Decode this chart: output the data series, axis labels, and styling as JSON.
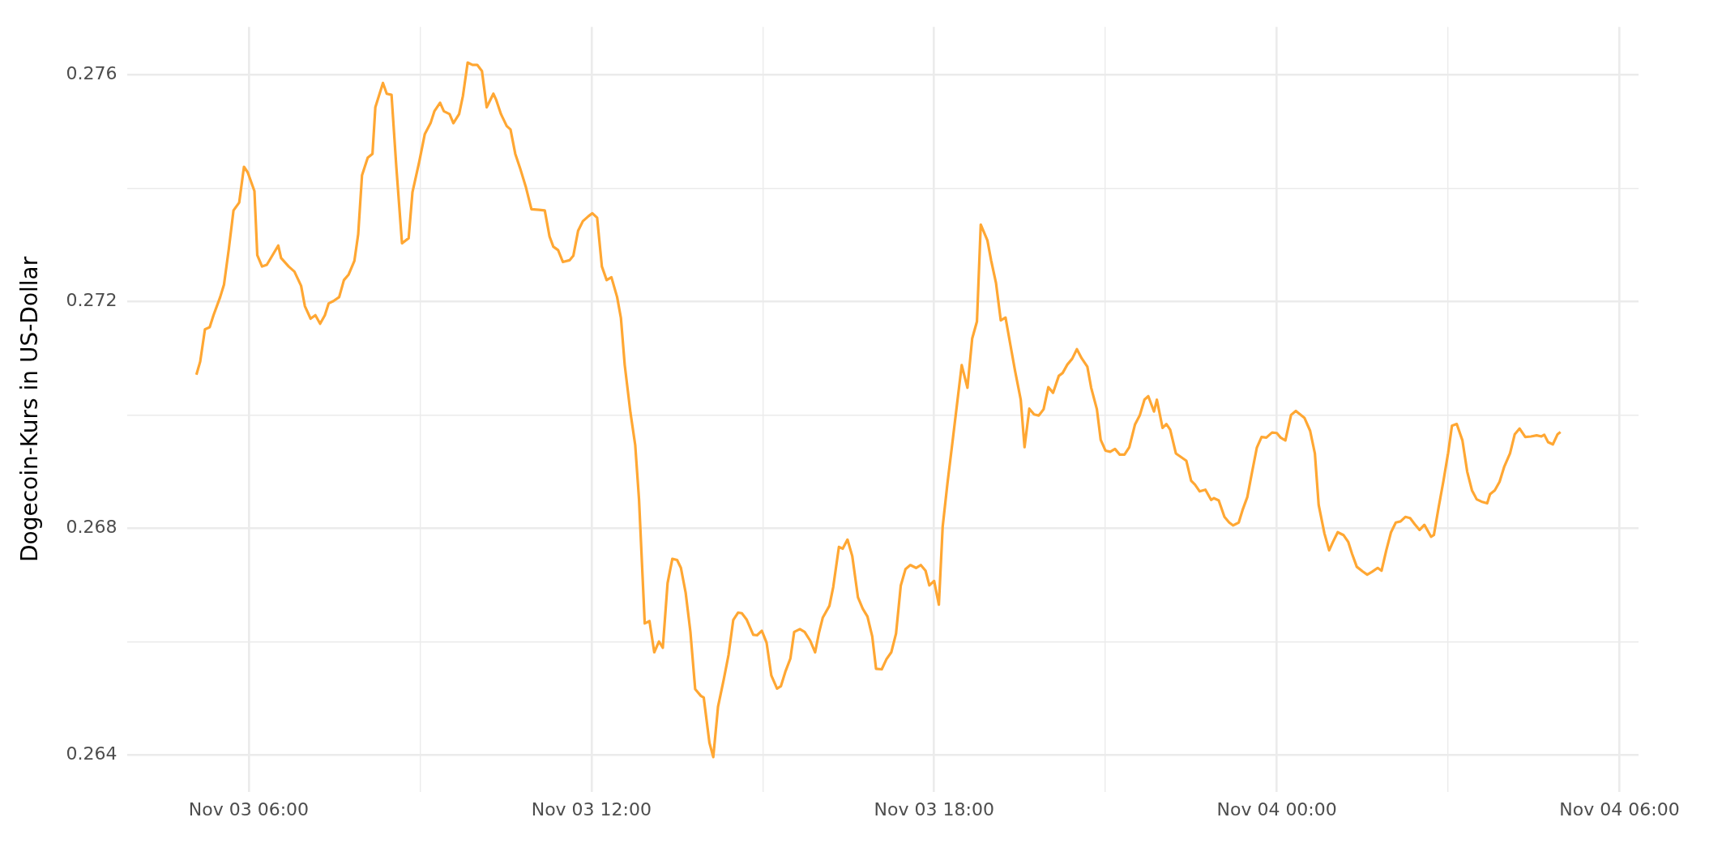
{
  "chart_data": {
    "type": "line",
    "ylabel": "Dogecoin-Kurs in US-Dollar",
    "color": "#ffa733",
    "grid": true,
    "xlim": [
      "--11-03T03:52",
      "--11-04T06:20"
    ],
    "xticks": [
      {
        "value": "--11-03T06:00",
        "label": "Nov 03 06:00"
      },
      {
        "value": "--11-03T09:00",
        "label": null
      },
      {
        "value": "--11-03T12:00",
        "label": "Nov 03 12:00"
      },
      {
        "value": "--11-03T15:00",
        "label": null
      },
      {
        "value": "--11-03T18:00",
        "label": "Nov 03 18:00"
      },
      {
        "value": "--11-03T21:00",
        "label": null
      },
      {
        "value": "--11-04T00:00",
        "label": "Nov 04 00:00"
      },
      {
        "value": "--11-04T03:00",
        "label": null
      },
      {
        "value": "--11-04T06:00",
        "label": "Nov 04 06:00"
      }
    ],
    "ylim": [
      0.26335,
      0.27685
    ],
    "yticks": [
      {
        "value": 0.264,
        "label": "0.264"
      },
      {
        "value": 0.266,
        "label": null
      },
      {
        "value": 0.268,
        "label": "0.268"
      },
      {
        "value": 0.27,
        "label": null
      },
      {
        "value": 0.272,
        "label": "0.272"
      },
      {
        "value": 0.274,
        "label": null
      },
      {
        "value": 0.276,
        "label": "0.276"
      }
    ],
    "x": [
      "--11-03T05:05",
      "--11-03T05:09",
      "--11-03T05:14",
      "--11-03T05:19",
      "--11-03T05:23",
      "--11-03T05:30",
      "--11-03T05:34",
      "--11-03T05:39",
      "--11-03T05:44",
      "--11-03T05:50",
      "--11-03T05:55",
      "--11-03T05:59",
      "--11-03T06:06",
      "--11-03T06:09",
      "--11-03T06:14",
      "--11-03T06:19",
      "--11-03T06:31",
      "--11-03T06:34",
      "--11-03T06:42",
      "--11-03T06:48",
      "--11-03T06:55",
      "--11-03T06:59",
      "--11-03T07:05",
      "--11-03T07:10",
      "--11-03T07:15",
      "--11-03T07:20",
      "--11-03T07:24",
      "--11-03T07:29",
      "--11-03T07:35",
      "--11-03T07:40",
      "--11-03T07:45",
      "--11-03T07:51",
      "--11-03T07:55",
      "--11-03T07:59",
      "--11-03T08:05",
      "--11-03T08:10",
      "--11-03T08:13",
      "--11-03T08:21",
      "--11-03T08:25",
      "--11-03T08:30",
      "--11-03T08:35",
      "--11-03T08:41",
      "--11-03T08:48",
      "--11-03T08:52",
      "--11-03T08:59",
      "--11-03T09:05",
      "--11-03T09:11",
      "--11-03T09:15",
      "--11-03T09:21",
      "--11-03T09:25",
      "--11-03T09:31",
      "--11-03T09:35",
      "--11-03T09:41",
      "--11-03T09:45",
      "--11-03T09:50",
      "--11-03T09:55",
      "--11-03T10:00",
      "--11-03T10:05",
      "--11-03T10:10",
      "--11-03T10:17",
      "--11-03T10:20",
      "--11-03T10:25",
      "--11-03T10:31",
      "--11-03T10:35",
      "--11-03T10:40",
      "--11-03T10:45",
      "--11-03T10:51",
      "--11-03T10:57",
      "--11-03T11:05",
      "--11-03T11:11",
      "--11-03T11:16",
      "--11-03T11:20",
      "--11-03T11:25",
      "--11-03T11:30",
      "--11-03T11:37",
      "--11-03T11:41",
      "--11-03T11:46",
      "--11-03T11:51",
      "--11-03T11:57",
      "--11-03T12:01",
      "--11-03T12:06",
      "--11-03T12:11",
      "--11-03T12:16",
      "--11-03T12:21",
      "--11-03T12:27",
      "--11-03T12:31",
      "--11-03T12:35",
      "--11-03T12:41",
      "--11-03T12:46",
      "--11-03T12:50",
      "--11-03T12:56",
      "--11-03T13:01",
      "--11-03T13:06",
      "--11-03T13:11",
      "--11-03T13:15",
      "--11-03T13:20",
      "--11-03T13:25",
      "--11-03T13:30",
      "--11-03T13:34",
      "--11-03T13:39",
      "--11-03T13:44",
      "--11-03T13:49",
      "--11-03T13:55",
      "--11-03T13:58",
      "--11-03T14:04",
      "--11-03T14:08",
      "--11-03T14:13",
      "--11-03T14:19",
      "--11-03T14:24",
      "--11-03T14:29",
      "--11-03T14:34",
      "--11-03T14:38",
      "--11-03T14:43",
      "--11-03T14:50",
      "--11-03T14:54",
      "--11-03T14:59",
      "--11-03T15:04",
      "--11-03T15:09",
      "--11-03T15:15",
      "--11-03T15:19",
      "--11-03T15:24",
      "--11-03T15:29",
      "--11-03T15:33",
      "--11-03T15:39",
      "--11-03T15:44",
      "--11-03T15:50",
      "--11-03T15:55",
      "--11-03T15:59",
      "--11-03T16:03",
      "--11-03T16:10",
      "--11-03T16:14",
      "--11-03T16:20",
      "--11-03T16:24",
      "--11-03T16:29",
      "--11-03T16:34",
      "--11-03T16:40",
      "--11-03T16:45",
      "--11-03T16:50",
      "--11-03T16:55",
      "--11-03T16:59",
      "--11-03T17:05",
      "--11-03T17:10",
      "--11-03T17:15",
      "--11-03T17:20",
      "--11-03T17:25",
      "--11-03T17:30",
      "--11-03T17:35",
      "--11-03T17:41",
      "--11-03T17:46",
      "--11-03T17:51",
      "--11-03T17:55",
      "--11-03T18:00",
      "--11-03T18:05",
      "--11-03T18:09",
      "--11-03T18:14",
      "--11-03T18:20",
      "--11-03T18:29",
      "--11-03T18:35",
      "--11-03T18:40",
      "--11-03T18:45",
      "--11-03T18:49",
      "--11-03T18:56",
      "--11-03T19:00",
      "--11-03T19:05",
      "--11-03T19:10",
      "--11-03T19:15",
      "--11-03T19:20",
      "--11-03T19:25",
      "--11-03T19:31",
      "--11-03T19:35",
      "--11-03T19:40",
      "--11-03T19:45",
      "--11-03T19:50",
      "--11-03T19:55",
      "--11-03T20:00",
      "--11-03T20:05",
      "--11-03T20:11",
      "--11-03T20:15",
      "--11-03T20:20",
      "--11-03T20:25",
      "--11-03T20:30",
      "--11-03T20:35",
      "--11-03T20:41",
      "--11-03T20:45",
      "--11-03T20:51",
      "--11-03T20:55",
      "--11-03T21:00",
      "--11-03T21:05",
      "--11-03T21:10",
      "--11-03T21:15",
      "--11-03T21:20",
      "--11-03T21:25",
      "--11-03T21:31",
      "--11-03T21:36",
      "--11-03T21:41",
      "--11-03T21:45",
      "--11-03T21:51",
      "--11-03T21:54",
      "--11-03T22:00",
      "--11-03T22:04",
      "--11-03T22:08",
      "--11-03T22:14",
      "--11-03T22:25",
      "--11-03T22:30",
      "--11-03T22:34",
      "--11-03T22:39",
      "--11-03T22:45",
      "--11-03T22:51",
      "--11-03T22:54",
      "--11-03T22:59",
      "--11-03T23:05",
      "--11-03T23:10",
      "--11-03T23:14",
      "--11-03T23:20",
      "--11-03T23:24",
      "--11-03T23:29",
      "--11-03T23:34",
      "--11-03T23:39",
      "--11-03T23:44",
      "--11-03T23:49",
      "--11-03T23:55",
      "--11-04T00:00",
      "--11-04T00:04",
      "--11-04T00:09",
      "--11-04T00:15",
      "--11-04T00:20",
      "--11-04T00:29",
      "--11-04T00:35",
      "--11-04T00:40",
      "--11-04T00:44",
      "--11-04T00:50",
      "--11-04T00:55",
      "--11-04T00:59",
      "--11-04T01:04",
      "--11-04T01:10",
      "--11-04T01:15",
      "--11-04T01:19",
      "--11-04T01:24",
      "--11-04T01:30",
      "--11-04T01:35",
      "--11-04T01:40",
      "--11-04T01:46",
      "--11-04T01:50",
      "--11-04T01:55",
      "--11-04T02:00",
      "--11-04T02:05",
      "--11-04T02:10",
      "--11-04T02:15",
      "--11-04T02:20",
      "--11-04T02:25",
      "--11-04T02:30",
      "--11-04T02:35",
      "--11-04T02:42",
      "--11-04T02:45",
      "--11-04T02:50",
      "--11-04T02:55",
      "--11-04T03:00",
      "--11-04T03:04",
      "--11-04T03:09",
      "--11-04T03:15",
      "--11-04T03:20",
      "--11-04T03:25",
      "--11-04T03:30",
      "--11-04T03:35",
      "--11-04T03:41",
      "--11-04T03:44",
      "--11-04T03:49",
      "--11-04T03:54",
      "--11-04T03:59",
      "--11-04T04:05",
      "--11-04T04:10",
      "--11-04T04:15",
      "--11-04T04:21",
      "--11-04T04:27",
      "--11-04T04:33",
      "--11-04T04:38",
      "--11-04T04:41",
      "--11-04T04:45",
      "--11-04T04:50",
      "--11-04T04:55",
      "--11-04T04:58"
    ],
    "values": [
      0.27071,
      0.27094,
      0.27151,
      0.27155,
      0.27176,
      0.27208,
      0.2723,
      0.27292,
      0.27361,
      0.27375,
      0.27438,
      0.27428,
      0.27395,
      0.27282,
      0.27262,
      0.27265,
      0.27299,
      0.27277,
      0.27262,
      0.27253,
      0.27228,
      0.27192,
      0.2717,
      0.27176,
      0.27161,
      0.27176,
      0.27197,
      0.27201,
      0.27208,
      0.27238,
      0.27248,
      0.27272,
      0.27319,
      0.27423,
      0.27454,
      0.27461,
      0.27543,
      0.27586,
      0.27567,
      0.27565,
      0.27439,
      0.27303,
      0.27312,
      0.27393,
      0.27446,
      0.27496,
      0.27515,
      0.27536,
      0.27551,
      0.27536,
      0.27531,
      0.27515,
      0.27531,
      0.27563,
      0.27622,
      0.27618,
      0.27618,
      0.27607,
      0.27543,
      0.27567,
      0.27556,
      0.27531,
      0.2751,
      0.27504,
      0.27461,
      0.27436,
      0.27403,
      0.27363,
      0.27362,
      0.27361,
      0.27315,
      0.27297,
      0.27291,
      0.2727,
      0.27273,
      0.27281,
      0.27325,
      0.27342,
      0.27351,
      0.27356,
      0.27348,
      0.27262,
      0.27238,
      0.27243,
      0.27208,
      0.27171,
      0.27088,
      0.27004,
      0.26947,
      0.26851,
      0.26632,
      0.26636,
      0.26581,
      0.266,
      0.26589,
      0.26703,
      0.26746,
      0.26744,
      0.2673,
      0.26686,
      0.26617,
      0.26516,
      0.26504,
      0.26501,
      0.26421,
      0.26396,
      0.26485,
      0.26533,
      0.26576,
      0.26638,
      0.26651,
      0.2665,
      0.26639,
      0.26612,
      0.26611,
      0.26619,
      0.26598,
      0.2654,
      0.26517,
      0.26521,
      0.26548,
      0.2657,
      0.26617,
      0.26622,
      0.26617,
      0.26601,
      0.26581,
      0.26615,
      0.26642,
      0.26663,
      0.26696,
      0.26767,
      0.26764,
      0.2678,
      0.26751,
      0.26678,
      0.26658,
      0.26644,
      0.26609,
      0.26552,
      0.26551,
      0.26569,
      0.26581,
      0.26614,
      0.26699,
      0.26728,
      0.26735,
      0.2673,
      0.26735,
      0.26725,
      0.26699,
      0.26707,
      0.26665,
      0.26803,
      0.26879,
      0.26962,
      0.27088,
      0.27048,
      0.27135,
      0.27165,
      0.27336,
      0.27308,
      0.27272,
      0.27233,
      0.27167,
      0.27172,
      0.27125,
      0.27078,
      0.27027,
      0.26943,
      0.27011,
      0.27001,
      0.26999,
      0.2701,
      0.27049,
      0.27039,
      0.27069,
      0.27074,
      0.27089,
      0.27099,
      0.27116,
      0.271,
      0.27085,
      0.27048,
      0.2701,
      0.26956,
      0.26937,
      0.26935,
      0.2694,
      0.2693,
      0.2693,
      0.26943,
      0.26983,
      0.26999,
      0.27027,
      0.27033,
      0.27006,
      0.27027,
      0.26977,
      0.26984,
      0.26974,
      0.26932,
      0.26919,
      0.26884,
      0.26877,
      0.26865,
      0.26868,
      0.2685,
      0.26853,
      0.26849,
      0.2682,
      0.2681,
      0.26805,
      0.2681,
      0.26832,
      0.26855,
      0.26899,
      0.26942,
      0.26961,
      0.2696,
      0.26969,
      0.26968,
      0.2696,
      0.26955,
      0.27,
      0.27007,
      0.26995,
      0.26972,
      0.26932,
      0.26841,
      0.26791,
      0.26761,
      0.26776,
      0.26793,
      0.26788,
      0.26776,
      0.26755,
      0.26732,
      0.26724,
      0.26718,
      0.26723,
      0.2673,
      0.26725,
      0.26761,
      0.26793,
      0.2681,
      0.26812,
      0.2682,
      0.26818,
      0.26807,
      0.26797,
      0.26806,
      0.26785,
      0.26788,
      0.26837,
      0.26883,
      0.26933,
      0.26981,
      0.26984,
      0.26955,
      0.269,
      0.26867,
      0.26851,
      0.26847,
      0.26844,
      0.2686,
      0.26867,
      0.26882,
      0.26909,
      0.26932,
      0.26966,
      0.26976,
      0.26961,
      0.26962,
      0.26964,
      0.26962,
      0.26965,
      0.26952,
      0.26948,
      0.26966,
      0.2697
    ]
  }
}
